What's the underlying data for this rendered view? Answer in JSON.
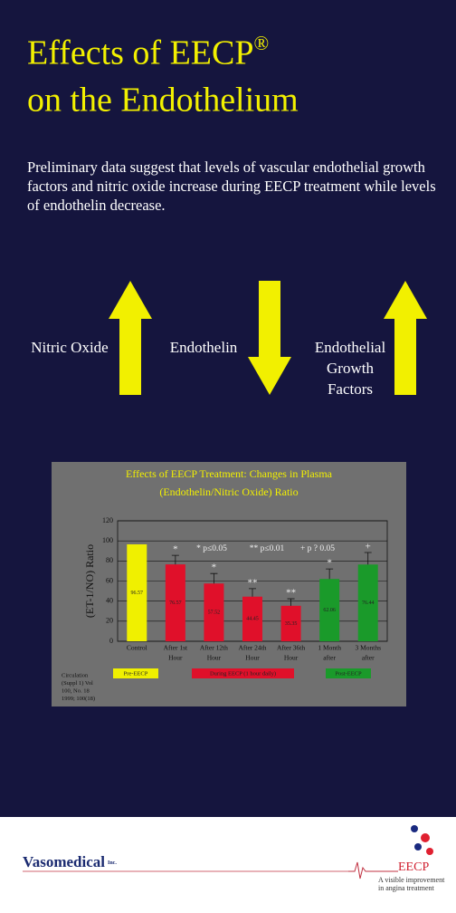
{
  "header": {
    "title": [
      "Effects of EECP",
      "on the Endothelium"
    ],
    "title_mark": "®"
  },
  "intro": [
    "Preliminary data suggest that levels of vascular endothelial growth",
    "factors and nitric oxide increase during EECP treatment while levels",
    "of endothelin decrease."
  ],
  "arrows": [
    {
      "label": [
        "Nitric Oxide"
      ],
      "direction": "up"
    },
    {
      "label": [
        "Endothelin"
      ],
      "direction": "down"
    },
    {
      "label": [
        "Endothelial",
        "Growth",
        "Factors"
      ],
      "direction": "up"
    }
  ],
  "chart_data": {
    "type": "bar",
    "title": [
      "Effects of EECP Treatment: Changes in Plasma",
      "(Endothelin/Nitric Oxide) Ratio"
    ],
    "y_label": "(ET-1/NO) Ratio",
    "categories": [
      [
        "Control"
      ],
      [
        "After 1st",
        "Hour"
      ],
      [
        "After 12th",
        "Hour"
      ],
      [
        "After 24th",
        "Hour"
      ],
      [
        "After 36th",
        "Hour"
      ],
      [
        "1 Month",
        "after"
      ],
      [
        "3 Months",
        "after"
      ]
    ],
    "values": [
      96.57,
      76.57,
      57.52,
      44.45,
      35.35,
      62.06,
      76.44
    ],
    "errors": [
      null,
      9,
      10,
      8,
      7,
      10,
      12
    ],
    "markers": [
      null,
      "*",
      "*",
      "**",
      "**",
      "*",
      "+"
    ],
    "colors": [
      "#f0f000",
      "#e0102a",
      "#e0102a",
      "#e0102a",
      "#e0102a",
      "#1a9a2a",
      "#1a9a2a"
    ],
    "ylim": [
      0,
      120
    ],
    "yticks": [
      0,
      20,
      40,
      60,
      80,
      100,
      120
    ],
    "grid": true,
    "significance": [
      "* p≤0.05",
      "** p≤0.01",
      "+ p ? 0.05"
    ],
    "groups": [
      {
        "label": "Pre-EECP",
        "color": "#f0f000"
      },
      {
        "label": "During EECP (1 hour daily)",
        "color": "#e0102a"
      },
      {
        "label": "Post-EECP",
        "color": "#1a9a2a"
      }
    ],
    "citation": [
      "Circulation",
      "(Suppl 1) Vol",
      "100, No. 18",
      "1999; 100(18)"
    ]
  },
  "footer": {
    "brand": "Vasomedical",
    "brand_suffix": "Inc.",
    "logo": "EECP",
    "tagline": [
      "A visible improvement",
      "in angina treatment"
    ]
  }
}
